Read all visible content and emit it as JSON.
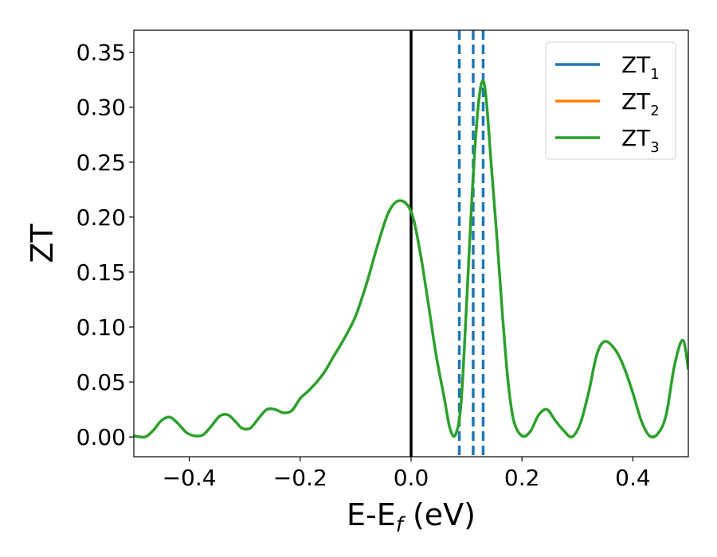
{
  "chart_data": {
    "type": "line",
    "xlabel": {
      "main": "E-E",
      "sub": "f",
      "suffix": " (eV)"
    },
    "ylabel": "ZT",
    "xlim": [
      -0.5,
      0.5
    ],
    "ylim": [
      -0.018,
      0.37
    ],
    "xticks": [
      -0.4,
      -0.2,
      0.0,
      0.2,
      0.4
    ],
    "xtick_labels": [
      "−0.4",
      "−0.2",
      "0.0",
      "0.2",
      "0.4"
    ],
    "yticks": [
      0.0,
      0.05,
      0.1,
      0.15,
      0.2,
      0.25,
      0.3,
      0.35
    ],
    "ytick_labels": [
      "0.00",
      "0.05",
      "0.10",
      "0.15",
      "0.20",
      "0.25",
      "0.30",
      "0.35"
    ],
    "grid": false,
    "legend_position": "top-right",
    "colors": {
      "ZT1": "#1f77b4",
      "ZT2": "#ff7f0e",
      "ZT3": "#2ca02c",
      "fermi": "#000000"
    },
    "series": [
      {
        "name": "ZT",
        "sub": "1",
        "color": "#1f77b4"
      },
      {
        "name": "ZT",
        "sub": "2",
        "color": "#ff7f0e"
      },
      {
        "name": "ZT",
        "sub": "3",
        "color": "#2ca02c",
        "x": [
          -0.5,
          -0.48,
          -0.465,
          -0.45,
          -0.435,
          -0.42,
          -0.405,
          -0.39,
          -0.375,
          -0.36,
          -0.345,
          -0.33,
          -0.315,
          -0.305,
          -0.29,
          -0.275,
          -0.26,
          -0.245,
          -0.23,
          -0.215,
          -0.2,
          -0.185,
          -0.17,
          -0.155,
          -0.14,
          -0.12,
          -0.1,
          -0.08,
          -0.06,
          -0.04,
          -0.02,
          0.0,
          0.015,
          0.03,
          0.045,
          0.06,
          0.07,
          0.08,
          0.09,
          0.1,
          0.11,
          0.12,
          0.128,
          0.135,
          0.145,
          0.155,
          0.165,
          0.175,
          0.185,
          0.2,
          0.215,
          0.23,
          0.245,
          0.26,
          0.275,
          0.29,
          0.305,
          0.32,
          0.335,
          0.35,
          0.37,
          0.385,
          0.4,
          0.415,
          0.43,
          0.445,
          0.46,
          0.475,
          0.49,
          0.5
        ],
        "y": [
          0.001,
          0.0,
          0.006,
          0.015,
          0.018,
          0.012,
          0.004,
          0.001,
          0.002,
          0.01,
          0.019,
          0.02,
          0.013,
          0.008,
          0.008,
          0.017,
          0.025,
          0.025,
          0.022,
          0.024,
          0.035,
          0.042,
          0.05,
          0.06,
          0.073,
          0.09,
          0.11,
          0.14,
          0.175,
          0.205,
          0.215,
          0.205,
          0.172,
          0.125,
          0.075,
          0.035,
          0.008,
          0.002,
          0.03,
          0.12,
          0.22,
          0.295,
          0.323,
          0.31,
          0.245,
          0.18,
          0.11,
          0.05,
          0.015,
          0.001,
          0.005,
          0.02,
          0.025,
          0.015,
          0.006,
          0.0,
          0.012,
          0.04,
          0.075,
          0.087,
          0.078,
          0.062,
          0.04,
          0.015,
          0.001,
          0.003,
          0.02,
          0.065,
          0.088,
          0.062
        ]
      }
    ],
    "reference_lines": [
      {
        "x": 0.0,
        "style": "solid",
        "color": "#000000"
      },
      {
        "x": 0.087,
        "style": "dashed",
        "color": "#1f77b4"
      },
      {
        "x": 0.112,
        "style": "dashed",
        "color": "#1f77b4"
      },
      {
        "x": 0.13,
        "style": "dashed",
        "color": "#1f77b4"
      }
    ]
  }
}
